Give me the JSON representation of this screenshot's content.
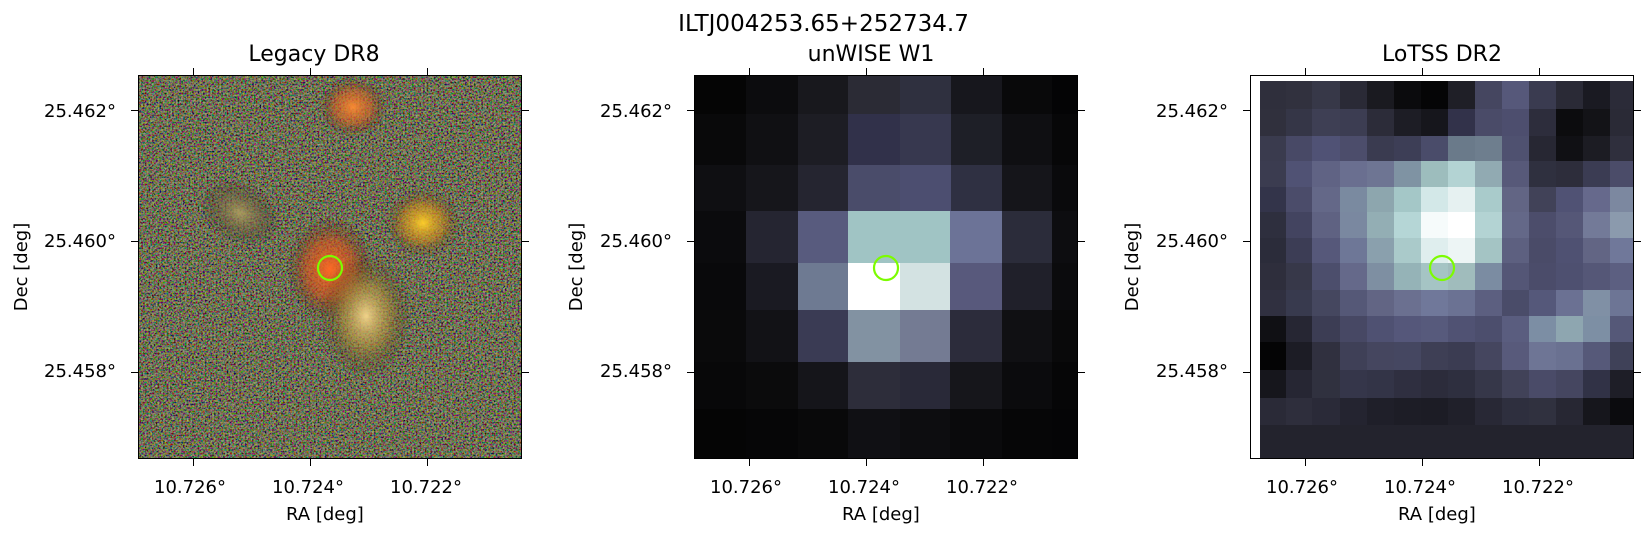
{
  "figure": {
    "title": "ILTJ004253.65+252734.7"
  },
  "panels": [
    {
      "title": "Legacy DR8",
      "xlabel": "RA [deg]",
      "ylabel": "Dec [deg]",
      "xticks": [
        "10.726°",
        "10.724°",
        "10.722°"
      ],
      "yticks": [
        "25.462°",
        "25.460°",
        "25.458°"
      ],
      "image": "optical color cutout with orange and yellow galaxy blobs",
      "marker_color": "#7cfc00"
    },
    {
      "title": "unWISE W1",
      "xlabel": "RA [deg]",
      "ylabel": "Dec [deg]",
      "xticks": [
        "10.726°",
        "10.724°",
        "10.722°"
      ],
      "yticks": [
        "25.462°",
        "25.460°",
        "25.458°"
      ],
      "image": "coarse pixel grayscale infrared cutout",
      "marker_color": "#7cfc00"
    },
    {
      "title": "LoTSS DR2",
      "xlabel": "RA [deg]",
      "ylabel": "Dec [deg]",
      "xticks": [
        "10.726°",
        "10.724°",
        "10.722°"
      ],
      "yticks": [
        "25.462°",
        "25.460°",
        "25.458°"
      ],
      "image": "radio cutout in bone colormap",
      "marker_color": "#7cfc00"
    }
  ]
}
